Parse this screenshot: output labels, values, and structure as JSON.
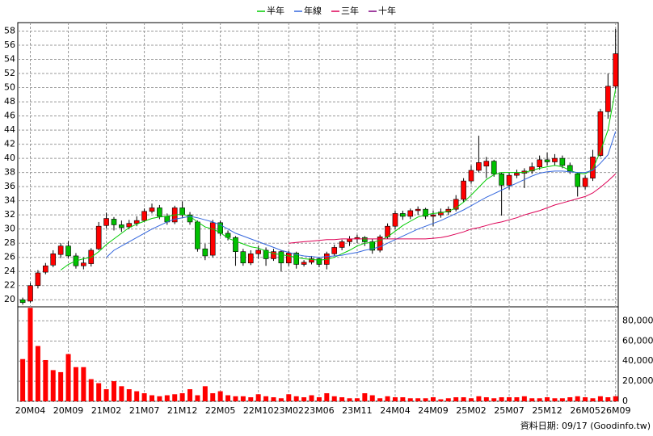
{
  "chart_data": {
    "type": "candlestick",
    "legend_position": "top",
    "source_note": "資料日期: 09/17 (Goodinfo.tw)",
    "up_color": "#ff0000",
    "down_color": "#00c000",
    "wick_color": "#000000",
    "categories": [
      null,
      "20M04",
      null,
      null,
      null,
      null,
      "20M09",
      null,
      null,
      null,
      null,
      "21M02",
      null,
      null,
      null,
      null,
      "21M07",
      null,
      null,
      null,
      null,
      "21M12",
      null,
      null,
      null,
      null,
      "22M05",
      null,
      null,
      null,
      null,
      "22M10",
      null,
      null,
      null,
      "23M02",
      null,
      null,
      null,
      "23M06",
      null,
      null,
      null,
      null,
      "23M11",
      null,
      null,
      null,
      null,
      "24M04",
      null,
      null,
      null,
      null,
      "24M09",
      null,
      null,
      null,
      null,
      "25M02",
      null,
      null,
      null,
      null,
      "25M07",
      null,
      null,
      null,
      null,
      "25M12",
      null,
      null,
      null,
      null,
      "26M05",
      null,
      null,
      null,
      "26M09"
    ],
    "ohlc": [
      [
        20.0,
        20.3,
        19.3,
        19.6
      ],
      [
        19.8,
        22.4,
        19.6,
        22.0
      ],
      [
        22.0,
        24.2,
        21.6,
        23.8
      ],
      [
        23.9,
        25.2,
        23.6,
        24.8
      ],
      [
        24.9,
        27.0,
        24.6,
        26.5
      ],
      [
        26.4,
        28.0,
        25.9,
        27.6
      ],
      [
        27.6,
        28.3,
        25.9,
        26.2
      ],
      [
        26.2,
        26.6,
        24.4,
        24.8
      ],
      [
        24.8,
        26.0,
        24.3,
        25.2
      ],
      [
        25.1,
        27.3,
        24.7,
        27.0
      ],
      [
        27.2,
        31.0,
        27.0,
        30.4
      ],
      [
        30.5,
        32.3,
        30.1,
        31.5
      ],
      [
        31.4,
        31.7,
        29.8,
        30.6
      ],
      [
        30.6,
        31.2,
        29.6,
        30.2
      ],
      [
        30.3,
        31.3,
        30.0,
        30.8
      ],
      [
        30.8,
        31.8,
        30.4,
        31.2
      ],
      [
        31.2,
        32.9,
        31.0,
        32.5
      ],
      [
        32.5,
        33.6,
        32.2,
        33.0
      ],
      [
        33.0,
        33.4,
        31.4,
        31.8
      ],
      [
        31.8,
        32.2,
        30.6,
        31.0
      ],
      [
        31.0,
        33.3,
        30.7,
        33.0
      ],
      [
        33.0,
        33.9,
        31.6,
        32.0
      ],
      [
        32.0,
        32.4,
        30.6,
        31.0
      ],
      [
        31.0,
        31.2,
        26.8,
        27.2
      ],
      [
        27.2,
        27.9,
        25.6,
        26.2
      ],
      [
        26.3,
        31.3,
        26.0,
        30.9
      ],
      [
        30.9,
        31.2,
        29.0,
        29.4
      ],
      [
        29.4,
        29.8,
        28.4,
        28.8
      ],
      [
        28.8,
        29.0,
        24.8,
        26.8
      ],
      [
        26.8,
        27.2,
        24.8,
        25.2
      ],
      [
        25.2,
        27.0,
        24.9,
        26.5
      ],
      [
        26.5,
        27.6,
        25.8,
        27.0
      ],
      [
        27.0,
        27.4,
        24.8,
        25.8
      ],
      [
        25.8,
        27.2,
        25.5,
        26.8
      ],
      [
        26.8,
        27.0,
        24.0,
        25.2
      ],
      [
        25.2,
        26.9,
        24.8,
        26.6
      ],
      [
        26.6,
        26.8,
        24.4,
        25.0
      ],
      [
        25.0,
        25.6,
        24.7,
        25.3
      ],
      [
        25.3,
        26.2,
        25.0,
        25.8
      ],
      [
        25.8,
        26.0,
        24.6,
        25.0
      ],
      [
        25.0,
        26.8,
        24.3,
        26.5
      ],
      [
        26.5,
        27.8,
        26.2,
        27.4
      ],
      [
        27.4,
        28.5,
        27.0,
        28.2
      ],
      [
        28.2,
        29.0,
        27.6,
        28.6
      ],
      [
        28.6,
        29.2,
        28.0,
        28.8
      ],
      [
        28.8,
        29.0,
        27.6,
        28.2
      ],
      [
        28.2,
        28.6,
        26.5,
        27.0
      ],
      [
        27.0,
        29.2,
        26.7,
        28.9
      ],
      [
        28.9,
        30.8,
        28.6,
        30.4
      ],
      [
        30.4,
        32.6,
        30.0,
        32.2
      ],
      [
        32.2,
        32.6,
        31.3,
        31.8
      ],
      [
        31.8,
        32.9,
        31.4,
        32.6
      ],
      [
        32.6,
        33.2,
        32.0,
        32.8
      ],
      [
        32.8,
        33.0,
        31.4,
        31.8
      ],
      [
        31.8,
        32.6,
        30.4,
        32.0
      ],
      [
        32.0,
        32.9,
        31.6,
        32.4
      ],
      [
        32.4,
        33.2,
        32.0,
        32.8
      ],
      [
        32.8,
        34.8,
        32.5,
        34.2
      ],
      [
        34.2,
        37.2,
        33.8,
        36.8
      ],
      [
        36.8,
        39.0,
        36.4,
        38.3
      ],
      [
        38.3,
        43.2,
        38.0,
        39.4
      ],
      [
        38.9,
        40.2,
        37.2,
        39.6
      ],
      [
        39.6,
        39.8,
        37.4,
        37.8
      ],
      [
        37.8,
        38.0,
        31.9,
        36.2
      ],
      [
        36.2,
        38.0,
        35.6,
        37.6
      ],
      [
        37.6,
        38.4,
        37.2,
        37.9
      ],
      [
        37.9,
        38.6,
        35.8,
        38.2
      ],
      [
        38.2,
        39.4,
        37.8,
        38.8
      ],
      [
        38.8,
        40.4,
        38.4,
        39.8
      ],
      [
        39.8,
        40.8,
        39.0,
        39.5
      ],
      [
        39.5,
        40.6,
        39.0,
        40.0
      ],
      [
        40.0,
        40.4,
        38.6,
        39.0
      ],
      [
        39.0,
        39.4,
        37.8,
        38.2
      ],
      [
        37.8,
        38.0,
        34.6,
        36.0
      ],
      [
        36.0,
        37.6,
        35.6,
        37.2
      ],
      [
        37.2,
        41.2,
        36.8,
        40.2
      ],
      [
        40.4,
        47.0,
        40.2,
        46.6
      ],
      [
        46.6,
        52.0,
        45.6,
        50.2
      ],
      [
        50.2,
        58.3,
        49.8,
        54.8
      ]
    ],
    "series": [
      {
        "name": "半年",
        "color": "#00cc00",
        "values": [
          null,
          null,
          null,
          null,
          null,
          24.2,
          25.0,
          25.5,
          25.8,
          26.0,
          26.8,
          27.8,
          28.6,
          29.4,
          30.2,
          30.7,
          31.1,
          31.5,
          31.7,
          31.8,
          32.0,
          32.1,
          31.8,
          31.0,
          30.3,
          30.0,
          29.5,
          28.7,
          28.3,
          27.9,
          27.5,
          27.3,
          26.9,
          26.5,
          26.4,
          26.2,
          26.0,
          25.8,
          25.7,
          25.6,
          25.7,
          26.0,
          26.5,
          27.0,
          27.6,
          28.0,
          28.1,
          28.4,
          28.9,
          29.7,
          30.5,
          31.1,
          31.7,
          32.0,
          32.2,
          32.3,
          32.5,
          33.0,
          33.8,
          34.8,
          35.9,
          37.0,
          37.7,
          38.0,
          38.0,
          38.0,
          38.0,
          38.3,
          38.6,
          38.8,
          39.0,
          38.8,
          38.3,
          37.9,
          37.8,
          38.5,
          41.0,
          44.0,
          49.8
        ]
      },
      {
        "name": "年線",
        "color": "#3366dd",
        "values": [
          null,
          null,
          null,
          null,
          null,
          null,
          null,
          null,
          null,
          null,
          null,
          26.0,
          27.0,
          27.6,
          28.2,
          28.8,
          29.4,
          30.0,
          30.5,
          31.0,
          31.4,
          31.6,
          31.8,
          31.6,
          31.3,
          31.0,
          30.6,
          30.0,
          29.4,
          29.0,
          28.6,
          28.2,
          27.8,
          27.4,
          27.0,
          26.7,
          26.4,
          26.2,
          26.1,
          26.0,
          26.1,
          26.2,
          26.3,
          26.5,
          26.7,
          27.0,
          27.2,
          27.5,
          28.0,
          28.5,
          29.0,
          29.5,
          30.0,
          30.4,
          30.8,
          31.2,
          31.7,
          32.2,
          32.7,
          33.3,
          33.9,
          34.5,
          35.0,
          35.5,
          36.0,
          36.5,
          37.0,
          37.5,
          37.9,
          38.1,
          38.2,
          38.2,
          38.1,
          38.0,
          38.0,
          38.3,
          39.3,
          40.5,
          43.8
        ]
      },
      {
        "name": "三年",
        "color": "#dd0055",
        "values": [
          null,
          null,
          null,
          null,
          null,
          null,
          null,
          null,
          null,
          null,
          null,
          null,
          null,
          null,
          null,
          null,
          null,
          null,
          null,
          null,
          null,
          null,
          null,
          null,
          null,
          null,
          null,
          null,
          null,
          null,
          null,
          null,
          null,
          null,
          null,
          28.0,
          28.1,
          28.2,
          28.3,
          28.4,
          28.5,
          28.5,
          28.6,
          28.6,
          28.6,
          28.6,
          28.6,
          28.6,
          28.6,
          28.6,
          28.6,
          28.6,
          28.6,
          28.6,
          28.7,
          28.8,
          29.0,
          29.3,
          29.6,
          30.0,
          30.2,
          30.5,
          30.8,
          31.0,
          31.3,
          31.6,
          32.0,
          32.3,
          32.6,
          33.0,
          33.4,
          33.7,
          34.0,
          34.3,
          34.6,
          35.1,
          35.9,
          36.8,
          37.8
        ]
      },
      {
        "name": "十年",
        "color": "#800080",
        "values": [
          null,
          null,
          null,
          null,
          null,
          null,
          null,
          null,
          null,
          null,
          null,
          null,
          null,
          null,
          null,
          null,
          null,
          null,
          null,
          null,
          null,
          null,
          null,
          null,
          null,
          null,
          null,
          null,
          null,
          null,
          null,
          null,
          null,
          null,
          null,
          null,
          null,
          null,
          null,
          null,
          null,
          null,
          null,
          null,
          null,
          null,
          null,
          null,
          null,
          null,
          null,
          null,
          null,
          null,
          null,
          null,
          null,
          null,
          null,
          null,
          null,
          null,
          null,
          null,
          null,
          null,
          null,
          null,
          null,
          null,
          null,
          null,
          null,
          null,
          null,
          null,
          null,
          null,
          null
        ]
      }
    ],
    "ylim": [
      19,
      59.2
    ],
    "yticks": [
      20,
      22,
      24,
      26,
      28,
      30,
      32,
      34,
      36,
      38,
      40,
      42,
      44,
      46,
      48,
      50,
      52,
      54,
      56,
      58
    ],
    "grid": true,
    "volume": {
      "color": "#ff0000",
      "values": [
        42000,
        93000,
        55000,
        41000,
        31000,
        29000,
        47000,
        34000,
        34000,
        22000,
        18000,
        12000,
        20000,
        15000,
        12000,
        10000,
        8000,
        6000,
        5000,
        6000,
        7000,
        8000,
        12000,
        6000,
        15000,
        8000,
        10000,
        6000,
        5000,
        5000,
        4000,
        7000,
        5000,
        4000,
        3000,
        7000,
        5000,
        4000,
        6000,
        4000,
        8000,
        5000,
        4000,
        3000,
        3000,
        8000,
        6000,
        3000,
        5000,
        4000,
        4000,
        3000,
        3000,
        3000,
        4000,
        2000,
        3000,
        4000,
        4000,
        3000,
        5000,
        4000,
        3000,
        4000,
        4000,
        4000,
        5000,
        3000,
        3000,
        4000,
        3000,
        3000,
        4000,
        5000,
        4000,
        3000,
        5000,
        4000,
        5000
      ],
      "ylim": [
        0,
        94000
      ],
      "yticks": [
        0,
        {
          "value": 20000,
          "label": "20,000"
        },
        {
          "value": 40000,
          "label": "40,000"
        },
        {
          "value": 60000,
          "label": "60,000"
        },
        {
          "value": 80000,
          "label": "80,000"
        }
      ]
    }
  }
}
